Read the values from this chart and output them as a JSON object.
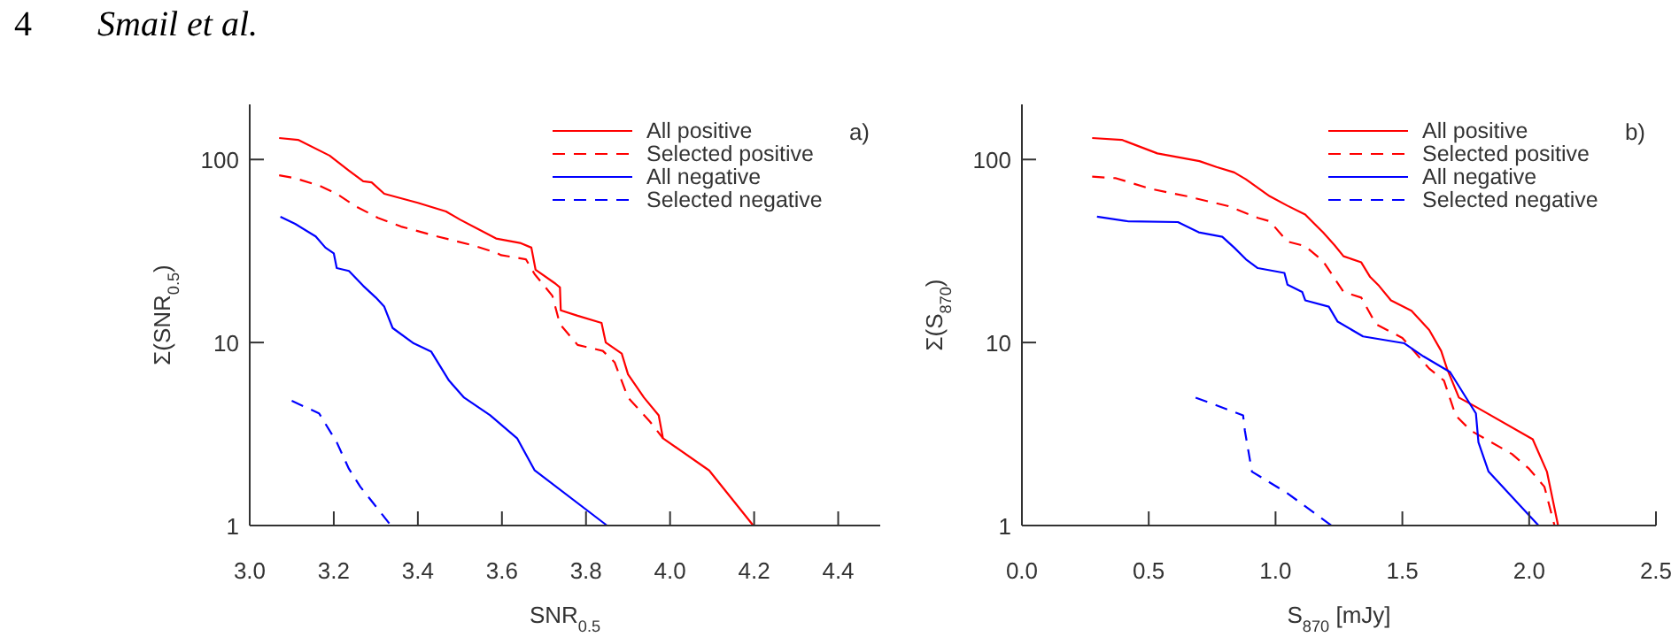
{
  "chart_data": [
    {
      "type": "line",
      "xlabel": "SNR$_{0.5}$",
      "ylabel": "Σ(SNR$_{0.5}$)",
      "annotations": [
        "4",
        "Smail et al.",
        "a)"
      ],
      "xlim": [
        3.0,
        4.5
      ],
      "xticks": [
        {
          "value": 3.0,
          "label": "3.0"
        },
        3.2,
        3.4,
        3.6,
        3.8,
        {
          "value": 4.0,
          "label": "4.0"
        },
        4.2,
        4.4
      ],
      "ylim": [
        1,
        200
      ],
      "yticks": [
        1,
        10,
        100
      ],
      "log": true,
      "grid": false,
      "legend": "top right",
      "series": [
        {
          "name": "All positive",
          "color": "#ff0000",
          "line_style": "solid",
          "x": [
            3.07,
            3.115,
            3.19,
            3.236,
            3.27,
            3.29,
            3.32,
            3.4,
            3.467,
            3.5,
            3.586,
            3.643,
            3.67,
            3.68,
            3.727,
            3.738,
            3.74,
            3.78,
            3.837,
            3.847,
            3.885,
            3.9,
            3.938,
            3.973,
            3.983,
            4.093,
            4.198
          ],
          "values": [
            131,
            128,
            105,
            87,
            76,
            75,
            65,
            58,
            52,
            47,
            37,
            35,
            33,
            25,
            21,
            20,
            15,
            14,
            12.8,
            10,
            8.7,
            6.7,
            5,
            4,
            3,
            2,
            1
          ]
        },
        {
          "name": "Selected positive",
          "color": "#ff0000",
          "line_style": "dashed",
          "x": [
            3.07,
            3.108,
            3.165,
            3.207,
            3.249,
            3.305,
            3.36,
            3.446,
            3.53,
            3.586,
            3.598,
            3.657,
            3.678,
            3.72,
            3.738,
            3.78,
            3.84,
            3.868,
            3.9,
            3.952,
            3.983
          ],
          "values": [
            82,
            79,
            72,
            65,
            56,
            48,
            43,
            38,
            34,
            31,
            30,
            28.5,
            23.6,
            18,
            12.6,
            9.7,
            9,
            7.8,
            5,
            3.7,
            3
          ]
        },
        {
          "name": "All negative",
          "color": "#0000ff",
          "line_style": "solid",
          "x": [
            3.073,
            3.108,
            3.157,
            3.18,
            3.2,
            3.207,
            3.236,
            3.27,
            3.3,
            3.32,
            3.34,
            3.39,
            3.432,
            3.474,
            3.51,
            3.572,
            3.636,
            3.678,
            3.85
          ],
          "values": [
            48.7,
            44.5,
            38,
            33,
            30.7,
            25.5,
            24.6,
            20.4,
            17.6,
            15.7,
            12,
            9.9,
            8.9,
            6.2,
            5,
            4,
            3,
            2,
            1
          ]
        },
        {
          "name": "Selected negative",
          "color": "#0000ff",
          "line_style": "dashed",
          "x": [
            3.1,
            3.165,
            3.207,
            3.236,
            3.263,
            3.336
          ],
          "values": [
            4.8,
            4.1,
            2.85,
            2.04,
            1.63,
            1
          ]
        }
      ]
    },
    {
      "type": "line",
      "xlabel": "S$_{870}$ [mJy]",
      "ylabel": "Σ(S$_{870}$)",
      "annotations": [
        "b)"
      ],
      "xlim": [
        0,
        2.5
      ],
      "xticks": [
        {
          "value": 0,
          "label": "0.0"
        },
        0.5,
        {
          "value": 1,
          "label": "1.0"
        },
        1.5,
        {
          "value": 2,
          "label": "2.0"
        },
        2.5
      ],
      "ylim": [
        1,
        200
      ],
      "yticks": [
        1,
        10,
        100
      ],
      "log": true,
      "grid": false,
      "legend": "top right",
      "series": [
        {
          "name": "All positive",
          "color": "#ff0000",
          "line_style": "solid",
          "x": [
            0.277,
            0.394,
            0.534,
            0.7,
            0.767,
            0.837,
            0.883,
            0.977,
            1.046,
            1.117,
            1.187,
            1.233,
            1.268,
            1.338,
            1.373,
            1.408,
            1.455,
            1.536,
            1.606,
            1.653,
            1.676,
            1.723,
            1.79,
            2.014,
            2.07,
            2.114
          ],
          "values": [
            131,
            128,
            108,
            98,
            91,
            85,
            78,
            63,
            56,
            50,
            40,
            34,
            29.6,
            27.4,
            22.8,
            20.4,
            17,
            14.9,
            11.7,
            9,
            7.2,
            5,
            4.45,
            2.96,
            1.97,
            1
          ]
        },
        {
          "name": "Selected positive",
          "color": "#ff0000",
          "line_style": "dashed",
          "x": [
            0.277,
            0.371,
            0.51,
            0.65,
            0.814,
            0.93,
            0.977,
            1.047,
            1.117,
            1.187,
            1.221,
            1.268,
            1.338,
            1.396,
            1.5,
            1.606,
            1.664,
            1.71,
            1.77,
            1.932,
            2.0,
            2.06,
            2.1
          ],
          "values": [
            80.6,
            79,
            69,
            63,
            55.6,
            48,
            46,
            35.6,
            33.6,
            27.9,
            23.7,
            18.9,
            17.6,
            12.6,
            10.6,
            7.2,
            6.2,
            4,
            3.3,
            2.46,
            2.04,
            1.63,
            1
          ]
        },
        {
          "name": "All negative",
          "color": "#0000ff",
          "line_style": "solid",
          "x": [
            0.296,
            0.417,
            0.615,
            0.697,
            0.79,
            0.837,
            0.883,
            0.93,
            1.035,
            1.047,
            1.105,
            1.117,
            1.21,
            1.245,
            1.345,
            1.508,
            1.583,
            1.688,
            1.79,
            1.8,
            1.84,
            2.037
          ],
          "values": [
            48.7,
            46,
            45.5,
            40,
            37.8,
            33,
            28.5,
            25.5,
            24,
            20.7,
            18.9,
            17,
            15.7,
            13,
            10.8,
            9.9,
            8.4,
            6.9,
            4.1,
            2.85,
            1.97,
            1
          ]
        },
        {
          "name": "Selected negative",
          "color": "#0000ff",
          "line_style": "dashed",
          "x": [
            0.685,
            0.872,
            0.879,
            0.907,
            1.047,
            1.22
          ],
          "values": [
            5,
            4,
            3.3,
            1.97,
            1.5,
            1
          ]
        }
      ]
    }
  ]
}
